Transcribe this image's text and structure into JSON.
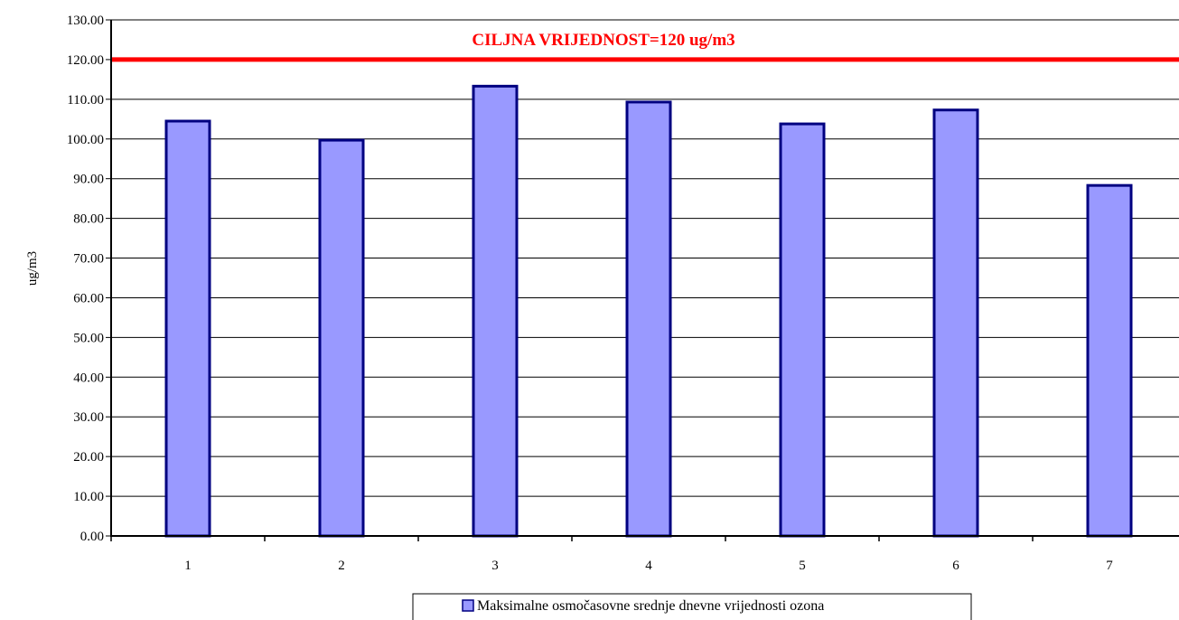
{
  "chart_data": {
    "type": "bar",
    "categories": [
      "1",
      "2",
      "3",
      "4",
      "5",
      "6",
      "7"
    ],
    "series": [
      {
        "name": "Maksimalne osmočasovne srednje dnevne vrijednosti ozona",
        "values": [
          104.5,
          99.7,
          113.3,
          109.3,
          103.8,
          107.3,
          88.3
        ],
        "color": "#9999ff",
        "border_color": "#000080"
      }
    ],
    "ylabel": "ug/m3",
    "xlabel": "",
    "ylim": [
      0,
      130
    ],
    "ytick_step": 10,
    "ytick_labels": [
      "0.00",
      "10.00",
      "20.00",
      "30.00",
      "40.00",
      "50.00",
      "60.00",
      "70.00",
      "80.00",
      "90.00",
      "100.00",
      "110.00",
      "120.00",
      "130.00"
    ],
    "grid": true,
    "target_line": {
      "value": 120,
      "label": "CILJNA VRIJEDNOST=120 ug/m3",
      "color": "#ff0000"
    },
    "legend_position": "bottom-center"
  }
}
